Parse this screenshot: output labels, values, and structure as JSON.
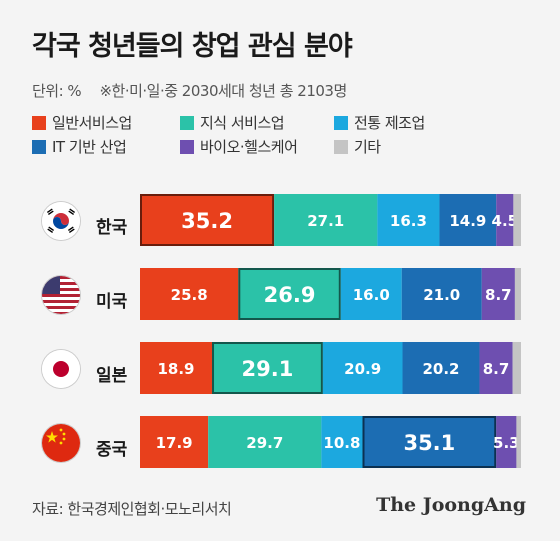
{
  "title": "각국 청년들의 창업 관심 분야",
  "subtitle": {
    "unit": "단위: %",
    "note": "※한·미·일·중 2030세대 청년 총 2103명"
  },
  "source": "자료: 한국경제인협회·모노리서치",
  "brand": "The JoongAng",
  "colors": {
    "service_general": "#e8401c",
    "knowledge_service": "#2bc2a8",
    "traditional_manufacturing": "#1ca8df",
    "it_industry": "#1c6db3",
    "bio_healthcare": "#6e4fb0",
    "other": "#c4c4c4"
  },
  "chart_data": {
    "type": "bar",
    "orientation": "horizontal",
    "stacked": true,
    "unit": "%",
    "categories": [
      "한국",
      "미국",
      "일본",
      "중국"
    ],
    "flags": [
      "korea-flag-icon",
      "usa-flag-icon",
      "japan-flag-icon",
      "china-flag-icon"
    ],
    "series": [
      {
        "name": "일반서비스업",
        "key": "service_general",
        "values": [
          35.2,
          25.8,
          18.9,
          17.9
        ]
      },
      {
        "name": "지식 서비스업",
        "key": "knowledge_service",
        "values": [
          27.1,
          26.9,
          29.1,
          29.7
        ]
      },
      {
        "name": "전통 제조업",
        "key": "traditional_manufacturing",
        "values": [
          16.3,
          16.0,
          20.9,
          10.8
        ]
      },
      {
        "name": "IT 기반 산업",
        "key": "it_industry",
        "values": [
          14.9,
          21.0,
          20.2,
          35.1
        ]
      },
      {
        "name": "바이오·헬스케어",
        "key": "bio_healthcare",
        "values": [
          4.5,
          8.7,
          8.7,
          5.3
        ]
      },
      {
        "name": "기타",
        "key": "other",
        "values": [
          2.0,
          1.6,
          2.2,
          1.2
        ]
      }
    ],
    "highlight": [
      0,
      1,
      1,
      3
    ],
    "xlim": [
      0,
      100
    ],
    "legend_position": "top"
  }
}
